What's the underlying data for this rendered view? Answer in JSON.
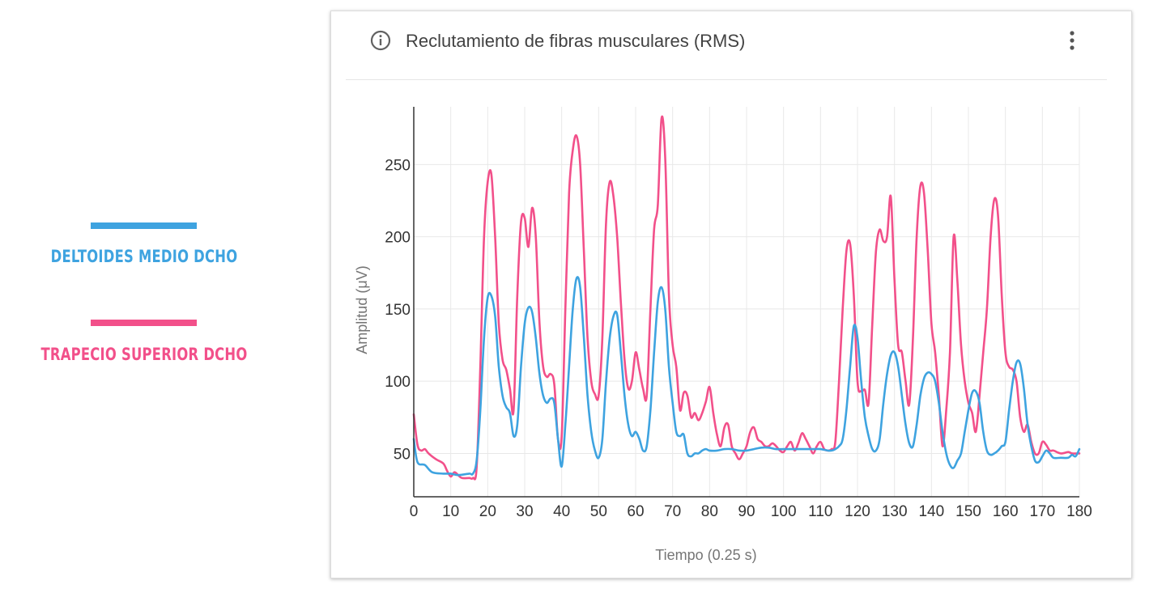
{
  "legend": {
    "items": [
      {
        "label": "DELTOIDES MEDIO DCHO",
        "color": "#3ea3e0"
      },
      {
        "label": "TRAPECIO SUPERIOR DCHO",
        "color": "#f2508a"
      }
    ]
  },
  "card": {
    "title": "Reclutamiento de fibras musculares (RMS)",
    "info_icon": "info-icon",
    "menu_icon": "more-vert-icon"
  },
  "chart_data": {
    "type": "line",
    "title": "Reclutamiento de fibras musculares (RMS)",
    "xlabel": "Tiempo (0.25 s)",
    "ylabel": "Amplitud (μV)",
    "xlim": [
      0,
      180
    ],
    "ylim": [
      20,
      290
    ],
    "xticks": [
      0,
      10,
      20,
      30,
      40,
      50,
      60,
      70,
      80,
      90,
      100,
      110,
      120,
      130,
      140,
      150,
      160,
      170,
      180
    ],
    "yticks": [
      50,
      100,
      150,
      200,
      250
    ],
    "grid": true,
    "legend_position": "left",
    "series": [
      {
        "name": "DELTOIDES MEDIO DCHO",
        "color": "#3ea3e0",
        "points": [
          [
            0,
            60
          ],
          [
            1,
            44
          ],
          [
            3,
            42
          ],
          [
            5,
            37
          ],
          [
            8,
            36
          ],
          [
            10,
            36
          ],
          [
            12,
            35
          ],
          [
            15,
            36
          ],
          [
            16,
            36
          ],
          [
            17,
            45
          ],
          [
            18,
            80
          ],
          [
            19,
            130
          ],
          [
            20,
            158
          ],
          [
            21,
            159
          ],
          [
            22,
            145
          ],
          [
            23,
            110
          ],
          [
            24,
            90
          ],
          [
            25,
            82
          ],
          [
            26,
            78
          ],
          [
            27,
            62
          ],
          [
            28,
            70
          ],
          [
            29,
            110
          ],
          [
            30,
            140
          ],
          [
            31,
            151
          ],
          [
            32,
            148
          ],
          [
            33,
            130
          ],
          [
            34,
            105
          ],
          [
            35,
            90
          ],
          [
            36,
            85
          ],
          [
            37,
            88
          ],
          [
            38,
            85
          ],
          [
            39,
            60
          ],
          [
            40,
            41
          ],
          [
            41,
            70
          ],
          [
            42,
            110
          ],
          [
            43,
            150
          ],
          [
            44,
            171
          ],
          [
            45,
            165
          ],
          [
            46,
            130
          ],
          [
            47,
            90
          ],
          [
            48,
            65
          ],
          [
            49,
            52
          ],
          [
            50,
            47
          ],
          [
            51,
            60
          ],
          [
            52,
            100
          ],
          [
            53,
            130
          ],
          [
            54,
            145
          ],
          [
            55,
            146
          ],
          [
            56,
            120
          ],
          [
            57,
            90
          ],
          [
            58,
            70
          ],
          [
            59,
            62
          ],
          [
            60,
            65
          ],
          [
            61,
            60
          ],
          [
            62,
            52
          ],
          [
            63,
            55
          ],
          [
            64,
            80
          ],
          [
            65,
            120
          ],
          [
            66,
            155
          ],
          [
            67,
            165
          ],
          [
            68,
            150
          ],
          [
            69,
            110
          ],
          [
            70,
            85
          ],
          [
            71,
            65
          ],
          [
            72,
            62
          ],
          [
            73,
            63
          ],
          [
            74,
            50
          ],
          [
            75,
            48
          ],
          [
            76,
            50
          ],
          [
            77,
            50
          ],
          [
            78,
            52
          ],
          [
            79,
            53
          ],
          [
            80,
            52
          ],
          [
            82,
            52
          ],
          [
            84,
            53
          ],
          [
            86,
            53
          ],
          [
            88,
            52
          ],
          [
            90,
            52
          ],
          [
            92,
            53
          ],
          [
            94,
            54
          ],
          [
            96,
            54
          ],
          [
            98,
            53
          ],
          [
            100,
            53
          ],
          [
            102,
            53
          ],
          [
            104,
            53
          ],
          [
            106,
            53
          ],
          [
            108,
            53
          ],
          [
            110,
            53
          ],
          [
            112,
            52
          ],
          [
            113,
            52
          ],
          [
            114,
            53
          ],
          [
            115,
            55
          ],
          [
            116,
            60
          ],
          [
            117,
            80
          ],
          [
            118,
            110
          ],
          [
            119,
            138
          ],
          [
            120,
            130
          ],
          [
            121,
            100
          ],
          [
            122,
            75
          ],
          [
            123,
            62
          ],
          [
            124,
            53
          ],
          [
            125,
            52
          ],
          [
            126,
            60
          ],
          [
            127,
            85
          ],
          [
            128,
            105
          ],
          [
            129,
            118
          ],
          [
            130,
            120
          ],
          [
            131,
            110
          ],
          [
            132,
            90
          ],
          [
            133,
            70
          ],
          [
            134,
            57
          ],
          [
            135,
            55
          ],
          [
            136,
            70
          ],
          [
            137,
            90
          ],
          [
            138,
            102
          ],
          [
            139,
            106
          ],
          [
            140,
            105
          ],
          [
            141,
            100
          ],
          [
            142,
            85
          ],
          [
            143,
            65
          ],
          [
            144,
            50
          ],
          [
            145,
            42
          ],
          [
            146,
            40
          ],
          [
            147,
            45
          ],
          [
            148,
            50
          ],
          [
            149,
            65
          ],
          [
            150,
            80
          ],
          [
            151,
            92
          ],
          [
            152,
            93
          ],
          [
            153,
            85
          ],
          [
            154,
            65
          ],
          [
            155,
            52
          ],
          [
            156,
            49
          ],
          [
            157,
            50
          ],
          [
            158,
            52
          ],
          [
            159,
            55
          ],
          [
            160,
            58
          ],
          [
            161,
            80
          ],
          [
            162,
            100
          ],
          [
            163,
            113
          ],
          [
            164,
            112
          ],
          [
            165,
            95
          ],
          [
            166,
            70
          ],
          [
            167,
            55
          ],
          [
            168,
            45
          ],
          [
            169,
            44
          ],
          [
            170,
            48
          ],
          [
            171,
            52
          ],
          [
            172,
            50
          ],
          [
            173,
            47
          ],
          [
            175,
            47
          ],
          [
            177,
            47
          ],
          [
            178,
            49
          ],
          [
            179,
            48
          ],
          [
            180,
            53
          ]
        ]
      },
      {
        "name": "TRAPECIO SUPERIOR DCHO",
        "color": "#f2508a",
        "points": [
          [
            0,
            77
          ],
          [
            1,
            56
          ],
          [
            2,
            52
          ],
          [
            3,
            53
          ],
          [
            4,
            50
          ],
          [
            6,
            46
          ],
          [
            8,
            43
          ],
          [
            9,
            38
          ],
          [
            10,
            34
          ],
          [
            11,
            37
          ],
          [
            12,
            35
          ],
          [
            13,
            33
          ],
          [
            15,
            33
          ],
          [
            16,
            33
          ],
          [
            17,
            40
          ],
          [
            18,
            110
          ],
          [
            19,
            200
          ],
          [
            20,
            238
          ],
          [
            21,
            243
          ],
          [
            22,
            200
          ],
          [
            23,
            140
          ],
          [
            24,
            115
          ],
          [
            25,
            108
          ],
          [
            26,
            95
          ],
          [
            27,
            80
          ],
          [
            28,
            160
          ],
          [
            29,
            210
          ],
          [
            30,
            213
          ],
          [
            31,
            193
          ],
          [
            32,
            220
          ],
          [
            33,
            200
          ],
          [
            34,
            140
          ],
          [
            35,
            110
          ],
          [
            36,
            103
          ],
          [
            37,
            105
          ],
          [
            38,
            98
          ],
          [
            39,
            60
          ],
          [
            40,
            62
          ],
          [
            41,
            150
          ],
          [
            42,
            230
          ],
          [
            43,
            260
          ],
          [
            44,
            270
          ],
          [
            45,
            250
          ],
          [
            46,
            190
          ],
          [
            47,
            130
          ],
          [
            48,
            100
          ],
          [
            49,
            91
          ],
          [
            50,
            90
          ],
          [
            51,
            130
          ],
          [
            52,
            210
          ],
          [
            53,
            238
          ],
          [
            54,
            228
          ],
          [
            55,
            200
          ],
          [
            56,
            155
          ],
          [
            57,
            115
          ],
          [
            58,
            95
          ],
          [
            59,
            100
          ],
          [
            60,
            120
          ],
          [
            61,
            108
          ],
          [
            62,
            95
          ],
          [
            63,
            90
          ],
          [
            64,
            150
          ],
          [
            65,
            205
          ],
          [
            66,
            222
          ],
          [
            67,
            282
          ],
          [
            68,
            255
          ],
          [
            69,
            160
          ],
          [
            70,
            125
          ],
          [
            71,
            110
          ],
          [
            72,
            80
          ],
          [
            73,
            92
          ],
          [
            74,
            90
          ],
          [
            75,
            75
          ],
          [
            76,
            78
          ],
          [
            77,
            73
          ],
          [
            78,
            78
          ],
          [
            79,
            86
          ],
          [
            80,
            96
          ],
          [
            81,
            78
          ],
          [
            82,
            63
          ],
          [
            83,
            55
          ],
          [
            84,
            68
          ],
          [
            85,
            70
          ],
          [
            86,
            55
          ],
          [
            87,
            50
          ],
          [
            88,
            46
          ],
          [
            89,
            50
          ],
          [
            90,
            55
          ],
          [
            91,
            65
          ],
          [
            92,
            68
          ],
          [
            93,
            60
          ],
          [
            94,
            58
          ],
          [
            95,
            55
          ],
          [
            96,
            55
          ],
          [
            97,
            57
          ],
          [
            98,
            55
          ],
          [
            99,
            52
          ],
          [
            100,
            51
          ],
          [
            101,
            55
          ],
          [
            102,
            58
          ],
          [
            103,
            52
          ],
          [
            104,
            57
          ],
          [
            105,
            64
          ],
          [
            106,
            60
          ],
          [
            107,
            55
          ],
          [
            108,
            50
          ],
          [
            109,
            55
          ],
          [
            110,
            58
          ],
          [
            111,
            53
          ],
          [
            112,
            52
          ],
          [
            113,
            53
          ],
          [
            114,
            58
          ],
          [
            115,
            100
          ],
          [
            116,
            150
          ],
          [
            117,
            190
          ],
          [
            118,
            195
          ],
          [
            119,
            160
          ],
          [
            120,
            100
          ],
          [
            121,
            93
          ],
          [
            122,
            94
          ],
          [
            123,
            85
          ],
          [
            124,
            140
          ],
          [
            125,
            190
          ],
          [
            126,
            205
          ],
          [
            127,
            197
          ],
          [
            128,
            200
          ],
          [
            129,
            228
          ],
          [
            130,
            170
          ],
          [
            131,
            125
          ],
          [
            132,
            120
          ],
          [
            133,
            100
          ],
          [
            134,
            84
          ],
          [
            135,
            130
          ],
          [
            136,
            200
          ],
          [
            137,
            235
          ],
          [
            138,
            230
          ],
          [
            139,
            190
          ],
          [
            140,
            140
          ],
          [
            141,
            120
          ],
          [
            142,
            90
          ],
          [
            143,
            55
          ],
          [
            144,
            80
          ],
          [
            145,
            120
          ],
          [
            146,
            200
          ],
          [
            147,
            170
          ],
          [
            148,
            125
          ],
          [
            149,
            100
          ],
          [
            150,
            85
          ],
          [
            151,
            78
          ],
          [
            152,
            65
          ],
          [
            153,
            90
          ],
          [
            154,
            120
          ],
          [
            155,
            150
          ],
          [
            156,
            200
          ],
          [
            157,
            226
          ],
          [
            158,
            215
          ],
          [
            159,
            160
          ],
          [
            160,
            120
          ],
          [
            161,
            110
          ],
          [
            162,
            108
          ],
          [
            163,
            100
          ],
          [
            164,
            75
          ],
          [
            165,
            65
          ],
          [
            166,
            70
          ],
          [
            167,
            58
          ],
          [
            168,
            50
          ],
          [
            169,
            50
          ],
          [
            170,
            58
          ],
          [
            171,
            56
          ],
          [
            172,
            52
          ],
          [
            173,
            52
          ],
          [
            175,
            50
          ],
          [
            177,
            51
          ],
          [
            178,
            50
          ],
          [
            180,
            50
          ]
        ]
      }
    ]
  }
}
